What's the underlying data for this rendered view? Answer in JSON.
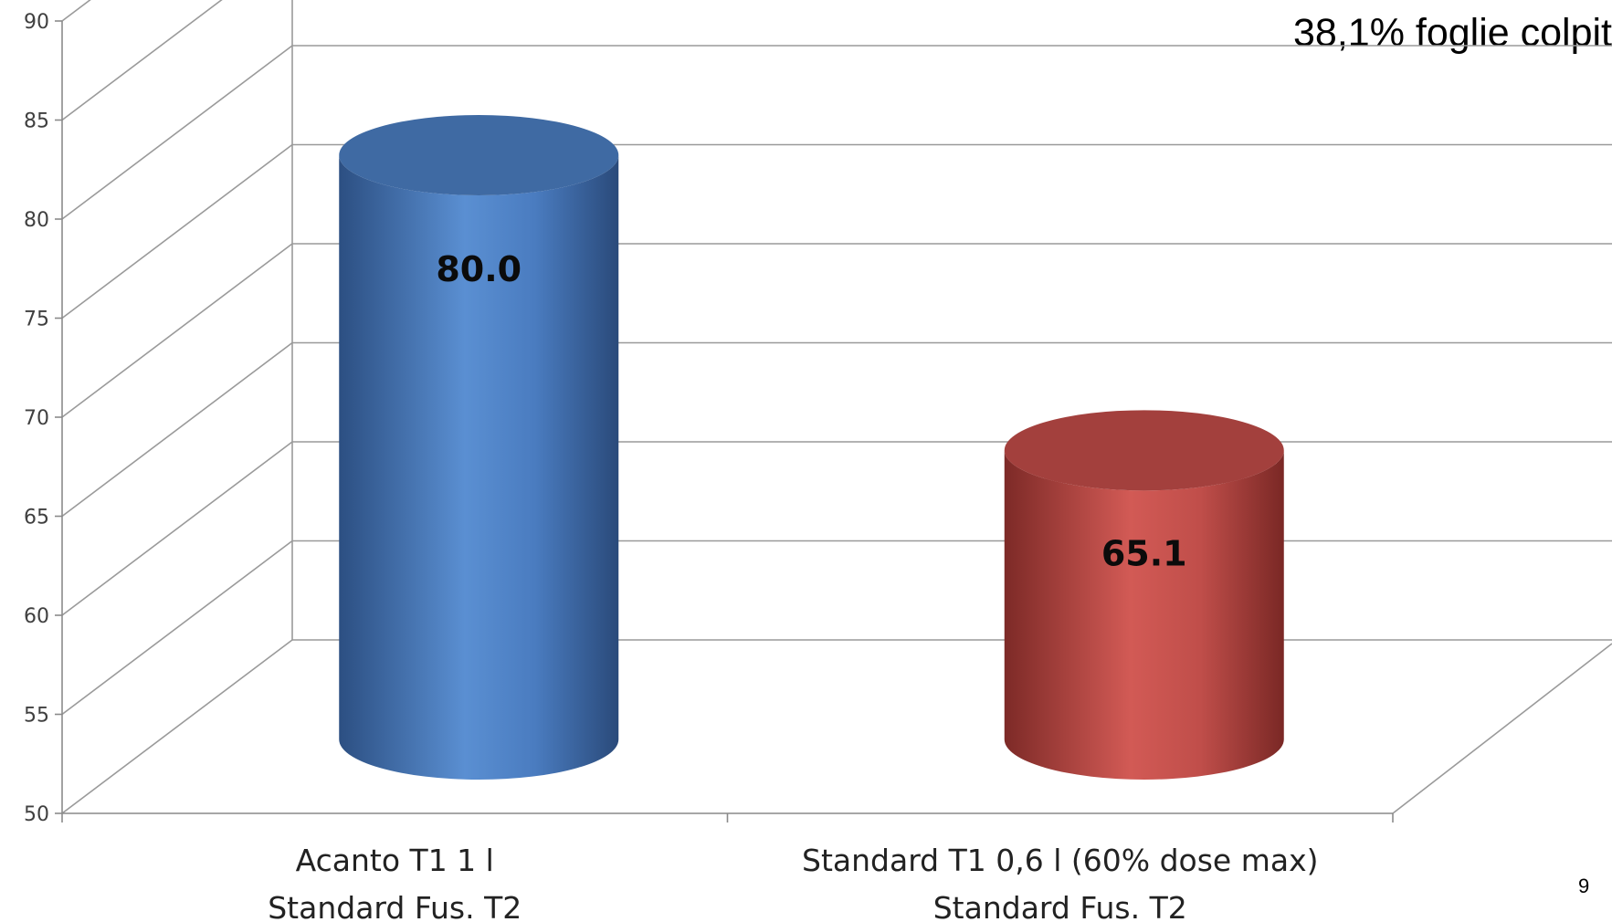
{
  "chart_data": {
    "type": "bar",
    "title": "38,1% foglie colpit",
    "categories": [
      [
        "Acanto T1 1 l",
        "Standard Fus. T2"
      ],
      [
        "Standard T1 0,6 l (60% dose max)",
        "Standard Fus. T2"
      ]
    ],
    "series": [
      {
        "values": [
          80.0,
          65.1
        ],
        "labels": [
          "80.0",
          "65.1"
        ],
        "colors": [
          "#4F81BD",
          "#C0504D"
        ]
      }
    ],
    "ylim": [
      50,
      90
    ],
    "yticks": [
      50,
      55,
      60,
      65,
      70,
      75,
      80,
      85,
      90
    ],
    "grid": true,
    "three_d": true,
    "shape": "cylinder"
  },
  "page_number": "9"
}
